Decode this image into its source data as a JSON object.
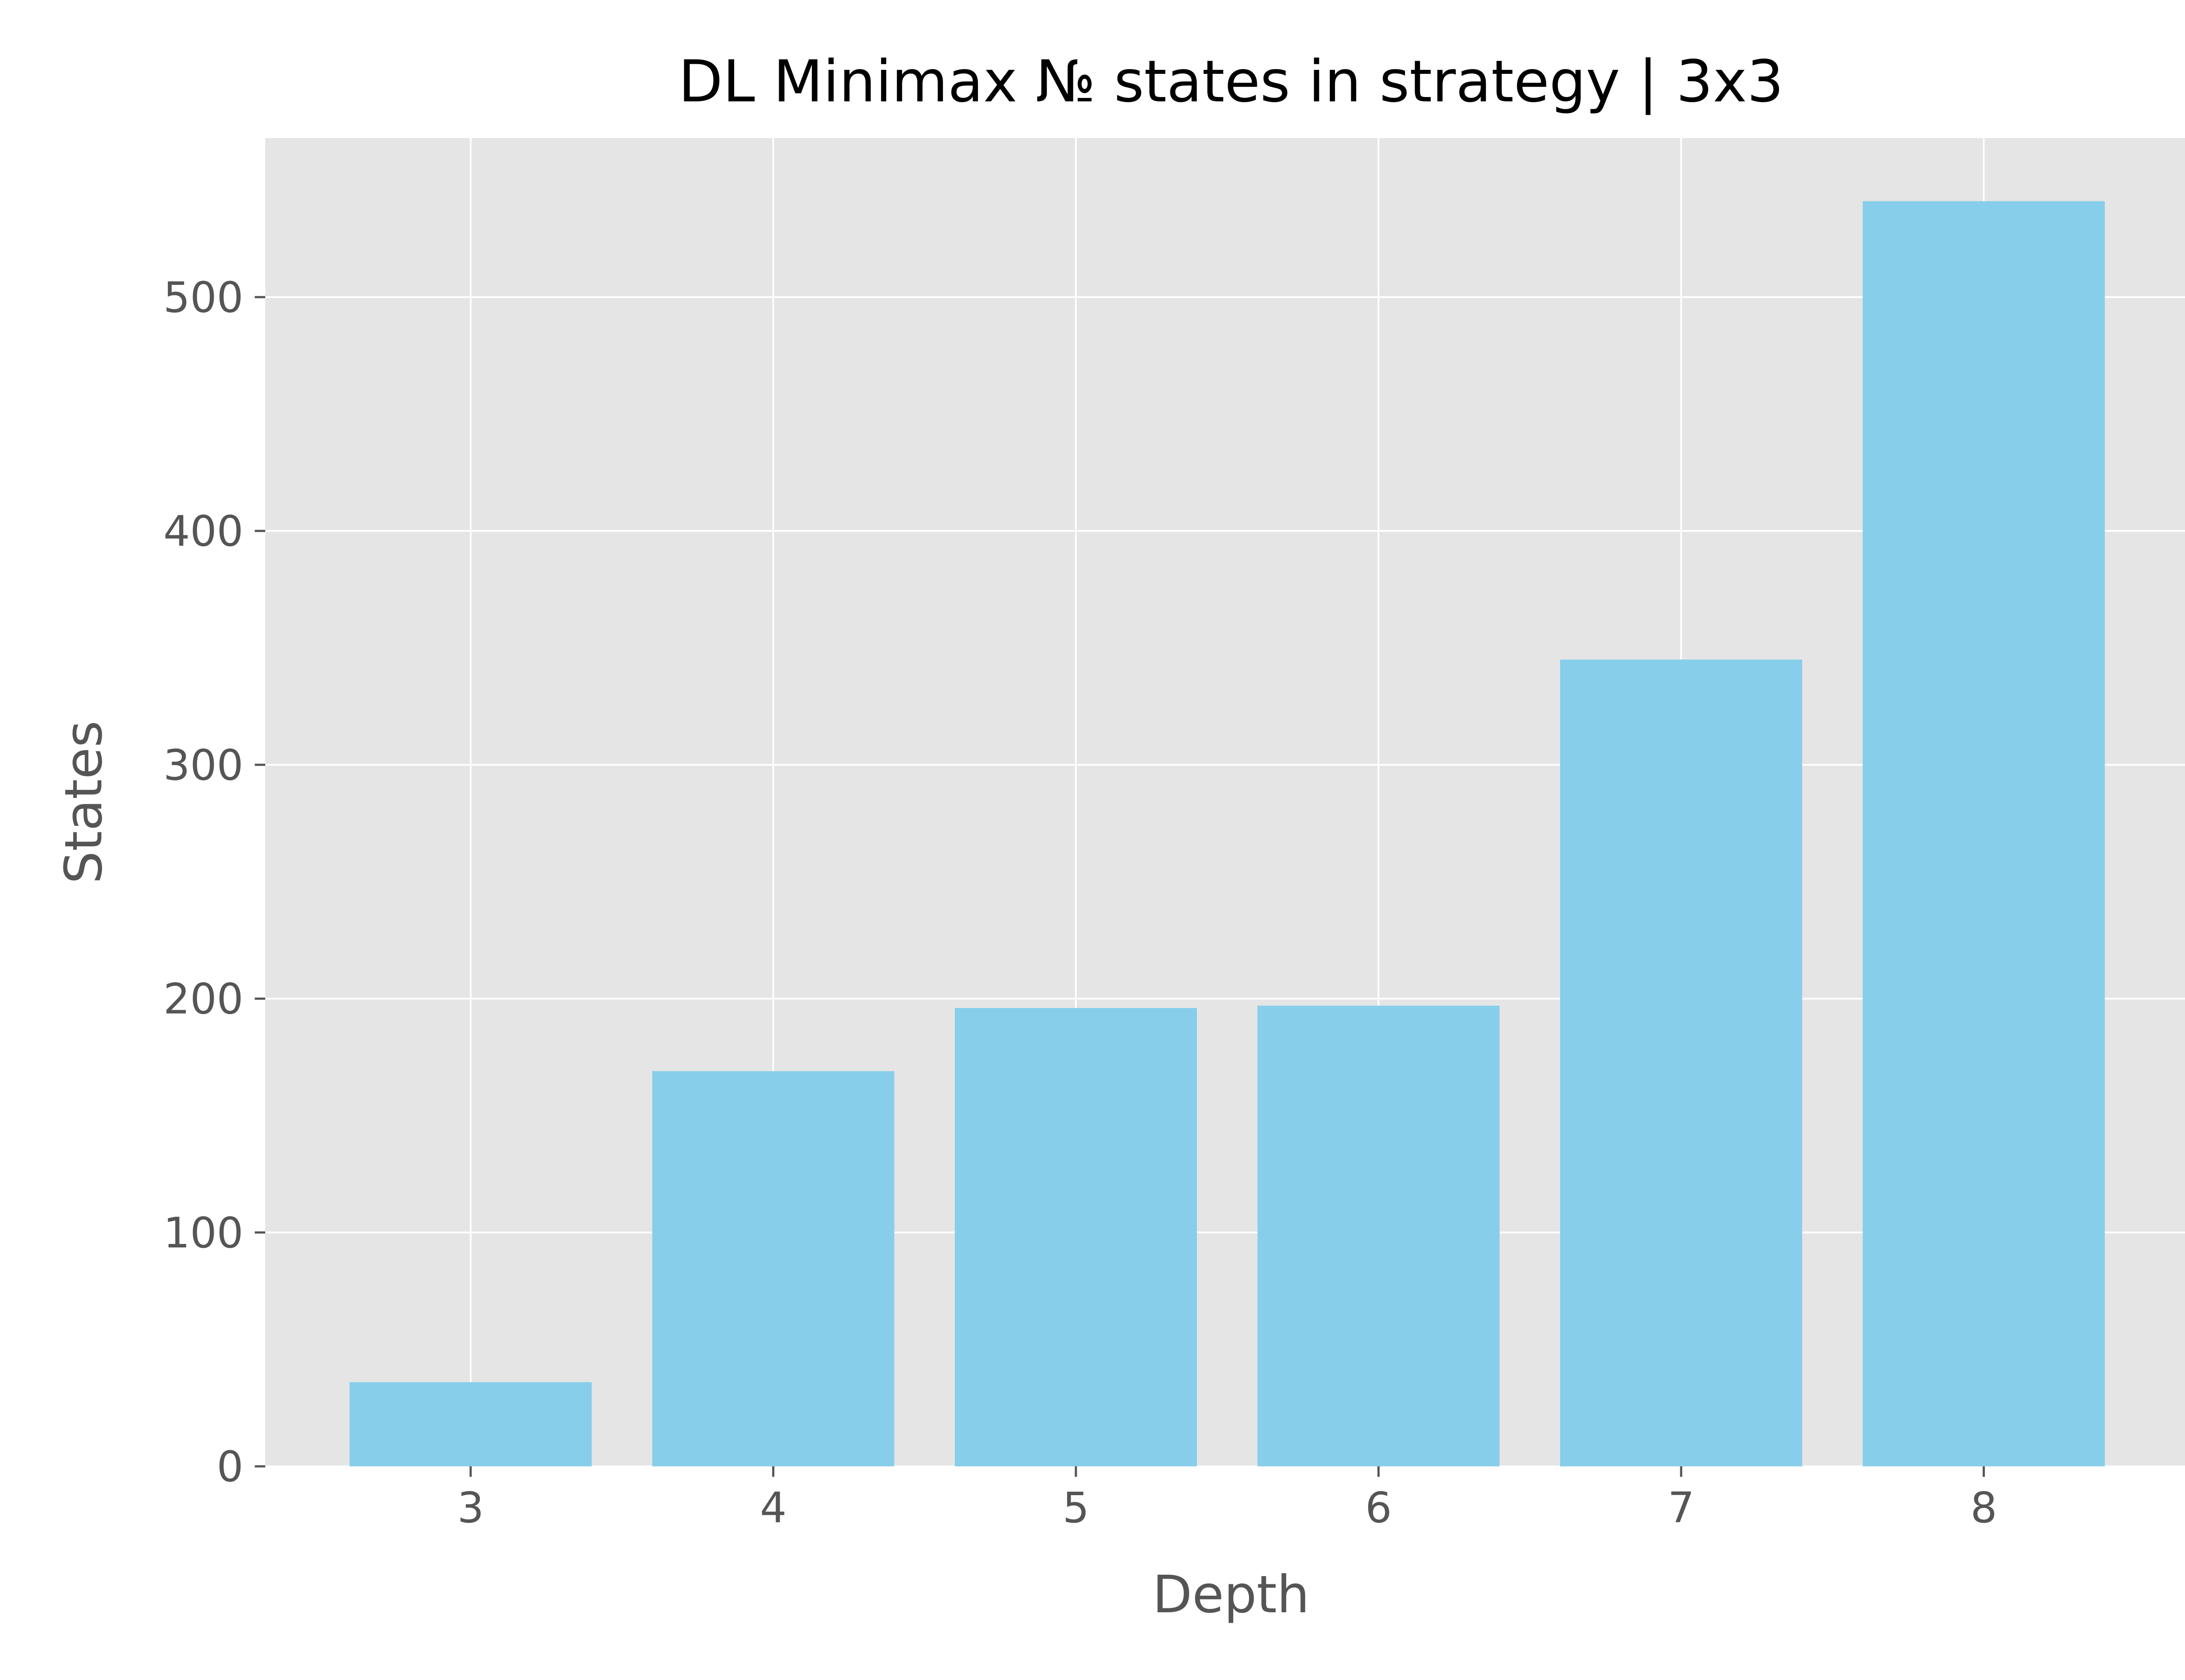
{
  "chart_data": {
    "type": "bar",
    "title": "DL Minimax № states in strategy | 3x3",
    "xlabel": "Depth",
    "ylabel": "States",
    "categories": [
      "3",
      "4",
      "5",
      "6",
      "7",
      "8"
    ],
    "values": [
      36,
      169,
      196,
      197,
      345,
      541
    ],
    "ylim": [
      0,
      568
    ],
    "yticks": [
      "0",
      "100",
      "200",
      "300",
      "400",
      "500"
    ],
    "grid": true,
    "colors": {
      "bar": "#87CEEB",
      "plot_background": "#E5E5E5",
      "grid": "#FFFFFF",
      "tick": "#555555",
      "title": "#000000"
    }
  }
}
